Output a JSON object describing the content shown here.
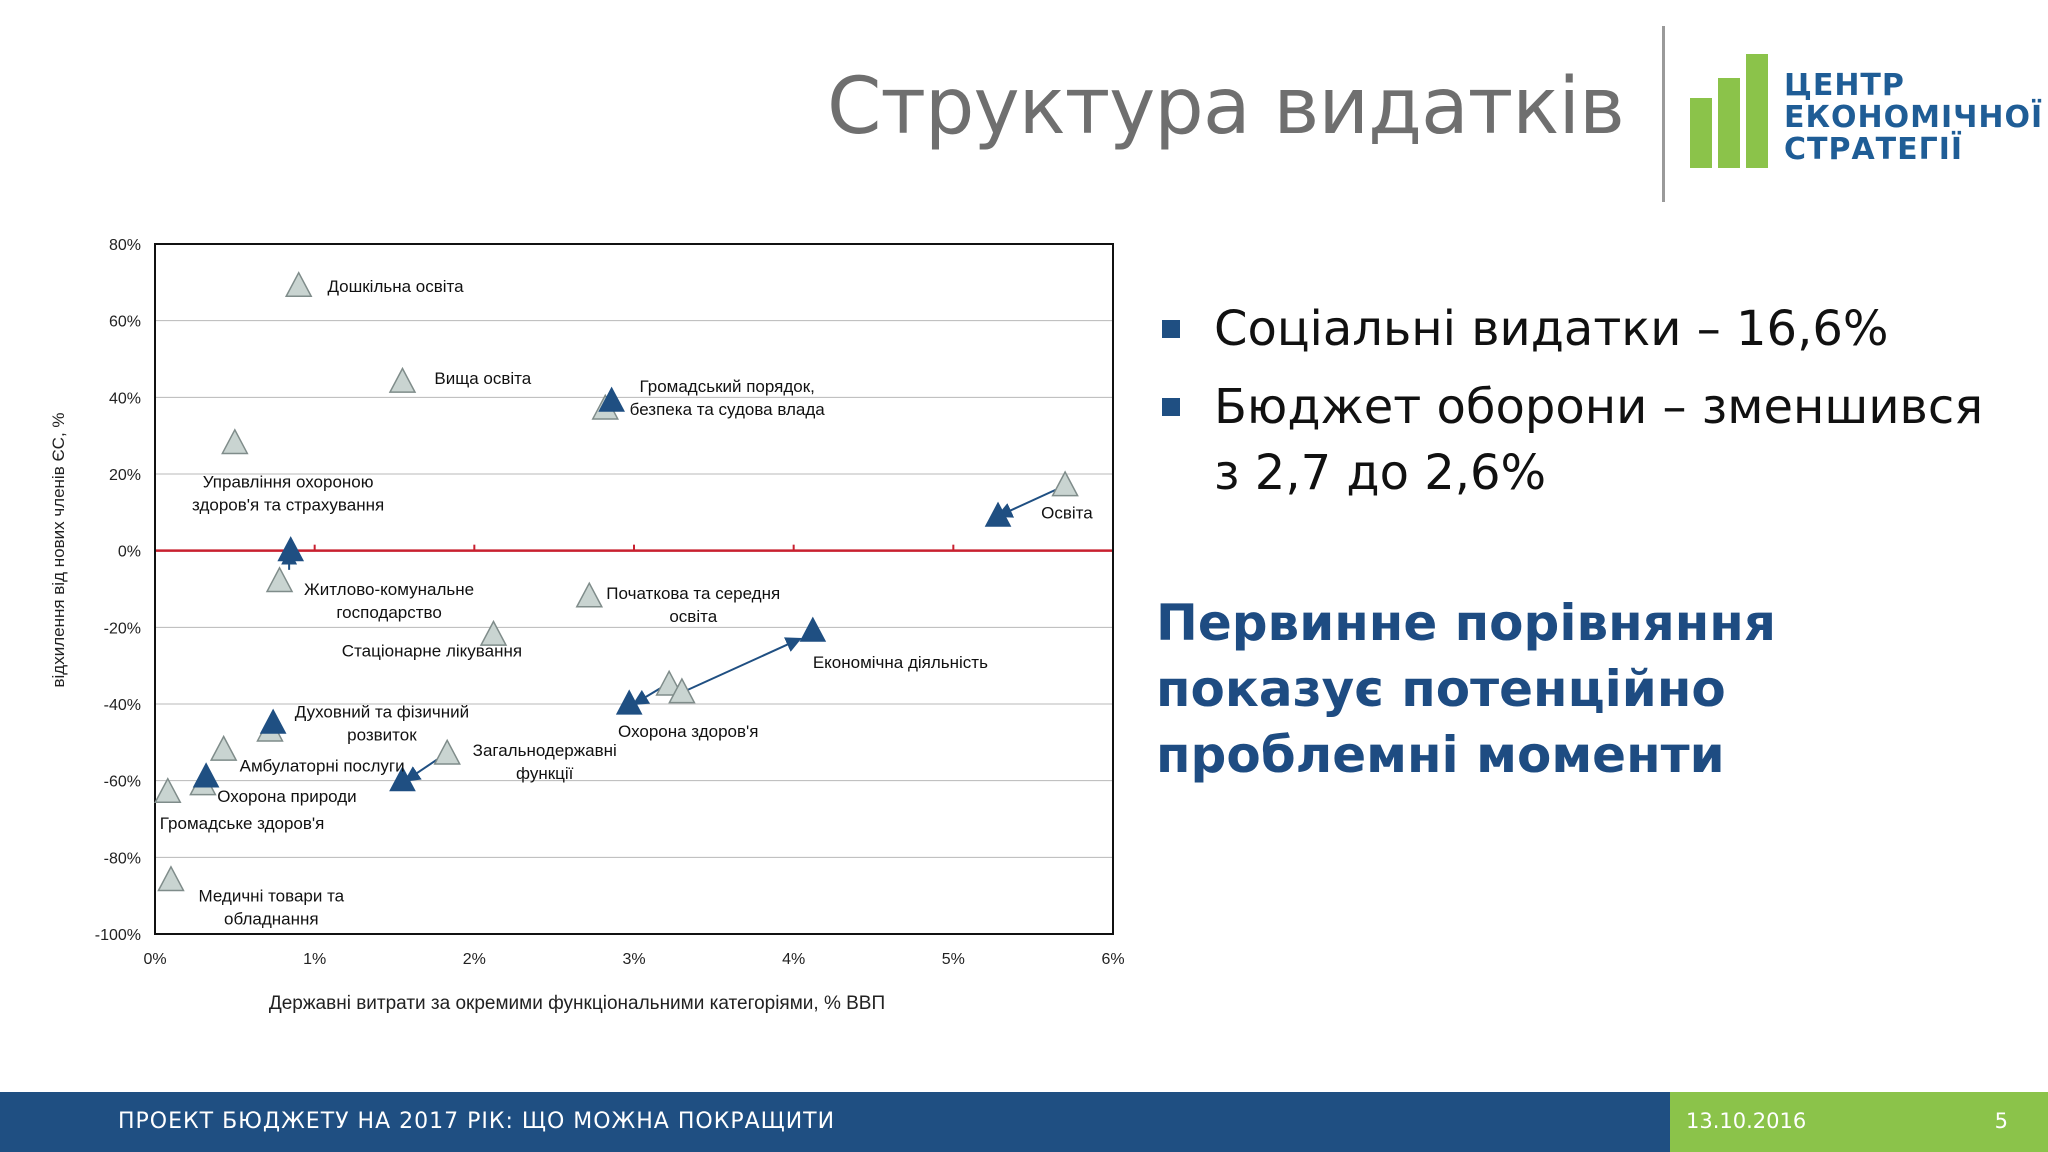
{
  "slide": {
    "title": "Структура видатків"
  },
  "logo": {
    "lines": [
      "ЦЕНТР",
      "ЕКОНОМІЧНОЇ",
      "СТРАТЕГІЇ"
    ],
    "bar_color": "#8bc34a",
    "text_color": "#1f5d96"
  },
  "bullets": [
    "Соціальні видатки – 16,6%",
    "Бюджет оборони – зменшився з 2,7 до 2,6%"
  ],
  "highlight": "Первинне порівняння показує потенційно проблемні моменти",
  "footer": {
    "title": "ПРОЕКТ БЮДЖЕТУ НА 2017 РІК: ЩО МОЖНА ПОКРАЩИТИ",
    "date": "13.10.2016",
    "page": "5",
    "left_color": "#1f4f82",
    "right_color": "#8bc34a"
  },
  "chart_data": {
    "type": "scatter",
    "title": "",
    "xlabel": "Державні витрати за окремими функціональними категоріями, % ВВП",
    "ylabel": "відхилення від нових членів ЄС, %",
    "xlim": [
      0,
      6
    ],
    "ylim": [
      -100,
      80
    ],
    "x_ticks": [
      "0%",
      "1%",
      "2%",
      "3%",
      "4%",
      "5%",
      "6%"
    ],
    "y_ticks": [
      "80%",
      "60%",
      "40%",
      "20%",
      "0%",
      "-20%",
      "-40%",
      "-60%",
      "-80%",
      "-100%"
    ],
    "grid": true,
    "zero_line_color": "#c8202f",
    "colors": {
      "light": "#c9d4d1",
      "light_stroke": "#7f8c8a",
      "dark": "#1f4f82"
    },
    "series": [
      {
        "style": "light",
        "points": [
          {
            "x": 0.9,
            "y": 69
          },
          {
            "x": 1.55,
            "y": 44
          },
          {
            "x": 0.5,
            "y": 28
          },
          {
            "x": 2.82,
            "y": 37
          },
          {
            "x": 5.7,
            "y": 17
          },
          {
            "x": 0.78,
            "y": -8
          },
          {
            "x": 2.72,
            "y": -12
          },
          {
            "x": 2.12,
            "y": -22
          },
          {
            "x": 3.22,
            "y": -35
          },
          {
            "x": 3.3,
            "y": -37
          },
          {
            "x": 0.72,
            "y": -47
          },
          {
            "x": 0.43,
            "y": -52
          },
          {
            "x": 1.83,
            "y": -53
          },
          {
            "x": 0.3,
            "y": -61
          },
          {
            "x": 0.08,
            "y": -63
          },
          {
            "x": 0.1,
            "y": -86
          }
        ]
      },
      {
        "style": "dark",
        "points": [
          {
            "x": 2.86,
            "y": 39
          },
          {
            "x": 5.28,
            "y": 9
          },
          {
            "x": 0.85,
            "y": 0
          },
          {
            "x": 4.12,
            "y": -21
          },
          {
            "x": 2.97,
            "y": -40
          },
          {
            "x": 0.74,
            "y": -45
          },
          {
            "x": 0.32,
            "y": -59
          },
          {
            "x": 1.55,
            "y": -60
          }
        ]
      }
    ],
    "arrows": [
      {
        "from": [
          5.7,
          17
        ],
        "to": [
          5.28,
          9
        ]
      },
      {
        "from": [
          0.84,
          -5
        ],
        "to": [
          0.84,
          0
        ]
      },
      {
        "from": [
          3.3,
          -37
        ],
        "to": [
          4.04,
          -23
        ]
      },
      {
        "from": [
          3.2,
          -35
        ],
        "to": [
          3.0,
          -40
        ]
      },
      {
        "from": [
          1.82,
          -53
        ],
        "to": [
          1.57,
          -60
        ]
      }
    ],
    "annotations": [
      {
        "text": "Дошкільна освіта",
        "x": 1.08,
        "y": 69
      },
      {
        "text": "Вища освіта",
        "x": 1.75,
        "y": 45
      },
      {
        "text": "Громадський порядок,\nбезпека та судова влада",
        "x": 2.95,
        "y": 43
      },
      {
        "text": "Управління охороною\nздоров'я та страхування",
        "x": 0.2,
        "y": 18
      },
      {
        "text": "Освіта",
        "x": 5.55,
        "y": 10
      },
      {
        "text": "Житлово-комунальне\nгосподарство",
        "x": 0.97,
        "y": -10
      },
      {
        "text": "Початкова та середня\nосвіта",
        "x": 2.82,
        "y": -11
      },
      {
        "text": "Стаціонарне лікування",
        "x": 1.17,
        "y": -26
      },
      {
        "text": "Економічна діяльність",
        "x": 4.12,
        "y": -29
      },
      {
        "text": "Охорона здоров'я",
        "x": 2.9,
        "y": -47
      },
      {
        "text": "Духовний та фізичний\nрозвиток",
        "x": 0.87,
        "y": -42
      },
      {
        "text": "Амбулаторні послуги",
        "x": 0.53,
        "y": -56
      },
      {
        "text": "Загальнодержавні\nфункції",
        "x": 2.0,
        "y": -52
      },
      {
        "text": "Охорона природи",
        "x": 0.39,
        "y": -64
      },
      {
        "text": "Громадське здоров'я",
        "x": 0.03,
        "y": -71
      },
      {
        "text": "Медичні товари та\nобладнання",
        "x": 0.26,
        "y": -90
      }
    ]
  }
}
